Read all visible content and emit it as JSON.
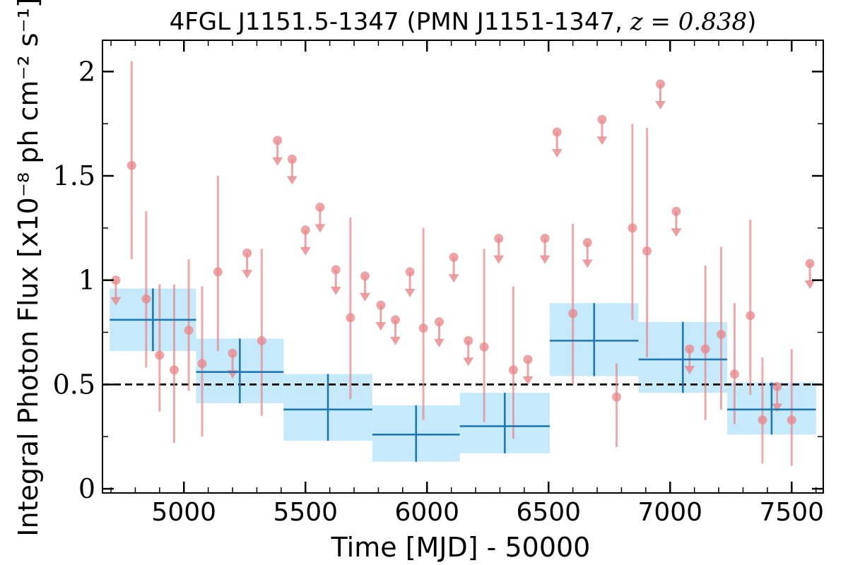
{
  "chart_data": {
    "type": "scatter",
    "title_text": "4FGL J1151.5-1347 (PMN J1151-1347, ",
    "title_math": "z = 0.838",
    "title_close": ")",
    "xlabel": "Time [MJD] - 50000",
    "ylabel": "Integral Photon Flux [x10⁻⁸ ph cm⁻² s⁻¹]",
    "xlim": [
      4665,
      7630
    ],
    "ylim": [
      -0.02,
      2.15
    ],
    "xticks": [
      5000,
      5500,
      6000,
      6500,
      7000,
      7500
    ],
    "yticks": [
      0,
      0.5,
      1,
      1.5,
      2
    ],
    "ytick_labels": [
      "0",
      "0.5",
      "1",
      "1.5",
      "2"
    ],
    "reference_line": {
      "y": 0.5,
      "style": "dashed",
      "color": "#000000"
    },
    "colors": {
      "short_bins": "#e8868a",
      "long_bins": "#1f77b4",
      "long_band": "#b3e3fa"
    },
    "series": [
      {
        "kind": "points",
        "points": [
          {
            "x": 4785,
            "y": 1.55,
            "lo": 1.1,
            "hi": 2.05
          },
          {
            "x": 4845,
            "y": 0.91,
            "lo": 0.58,
            "hi": 1.33
          },
          {
            "x": 4900,
            "y": 0.64,
            "lo": 0.37,
            "hi": 0.98
          },
          {
            "x": 4960,
            "y": 0.57,
            "lo": 0.22,
            "hi": 0.98
          },
          {
            "x": 5020,
            "y": 0.76,
            "lo": 0.47,
            "hi": 1.1
          },
          {
            "x": 5075,
            "y": 0.6,
            "lo": 0.25,
            "hi": 0.97
          },
          {
            "x": 5140,
            "y": 1.04,
            "lo": 0.66,
            "hi": 1.5
          },
          {
            "x": 5320,
            "y": 0.71,
            "lo": 0.35,
            "hi": 1.15
          },
          {
            "x": 5685,
            "y": 0.82,
            "lo": 0.43,
            "hi": 1.3
          },
          {
            "x": 5985,
            "y": 0.77,
            "lo": 0.33,
            "hi": 1.25
          },
          {
            "x": 6235,
            "y": 0.68,
            "lo": 0.32,
            "hi": 1.15
          },
          {
            "x": 6355,
            "y": 0.57,
            "lo": 0.24,
            "hi": 0.97
          },
          {
            "x": 6600,
            "y": 0.84,
            "lo": 0.5,
            "hi": 1.27
          },
          {
            "x": 6780,
            "y": 0.44,
            "lo": 0.2,
            "hi": 0.6
          },
          {
            "x": 6845,
            "y": 1.25,
            "lo": 0.81,
            "hi": 1.75
          },
          {
            "x": 6905,
            "y": 1.14,
            "lo": 0.63,
            "hi": 1.73
          },
          {
            "x": 7145,
            "y": 0.67,
            "lo": 0.33,
            "hi": 1.07
          },
          {
            "x": 7210,
            "y": 0.74,
            "lo": 0.38,
            "hi": 1.16
          },
          {
            "x": 7265,
            "y": 0.55,
            "lo": 0.31,
            "hi": 0.89
          },
          {
            "x": 7330,
            "y": 0.83,
            "lo": 0.45,
            "hi": 1.29
          },
          {
            "x": 7380,
            "y": 0.33,
            "lo": 0.12,
            "hi": 0.63
          },
          {
            "x": 7500,
            "y": 0.33,
            "lo": 0.11,
            "hi": 0.67
          }
        ]
      },
      {
        "kind": "upper_limits",
        "limits": [
          4720,
          1.0,
          5200,
          0.65,
          5260,
          1.13,
          5385,
          1.67,
          5445,
          1.58,
          5500,
          1.24,
          5560,
          1.35,
          5625,
          1.05,
          5745,
          1.02,
          5810,
          0.88,
          5870,
          0.81,
          5930,
          1.04,
          6050,
          0.8,
          6110,
          1.11,
          6170,
          0.71,
          6295,
          1.2,
          6415,
          0.62,
          6485,
          1.2,
          6535,
          1.71,
          6660,
          1.18,
          6720,
          1.77,
          6960,
          1.94,
          7025,
          1.33,
          7080,
          0.67,
          7440,
          0.49,
          7575,
          1.08
        ]
      },
      {
        "kind": "long_bins",
        "bins": [
          {
            "x0": 4695,
            "x1": 5050,
            "y": 0.81,
            "lo": 0.66,
            "hi": 0.96
          },
          {
            "x0": 5050,
            "x1": 5410,
            "y": 0.56,
            "lo": 0.41,
            "hi": 0.72
          },
          {
            "x0": 5410,
            "x1": 5775,
            "y": 0.38,
            "lo": 0.23,
            "hi": 0.55
          },
          {
            "x0": 5775,
            "x1": 6135,
            "y": 0.26,
            "lo": 0.13,
            "hi": 0.4
          },
          {
            "x0": 6135,
            "x1": 6505,
            "y": 0.3,
            "lo": 0.17,
            "hi": 0.46
          },
          {
            "x0": 6505,
            "x1": 6870,
            "y": 0.71,
            "lo": 0.54,
            "hi": 0.89
          },
          {
            "x0": 6870,
            "x1": 7235,
            "y": 0.62,
            "lo": 0.46,
            "hi": 0.8
          },
          {
            "x0": 7235,
            "x1": 7600,
            "y": 0.38,
            "lo": 0.26,
            "hi": 0.51
          }
        ]
      }
    ]
  }
}
